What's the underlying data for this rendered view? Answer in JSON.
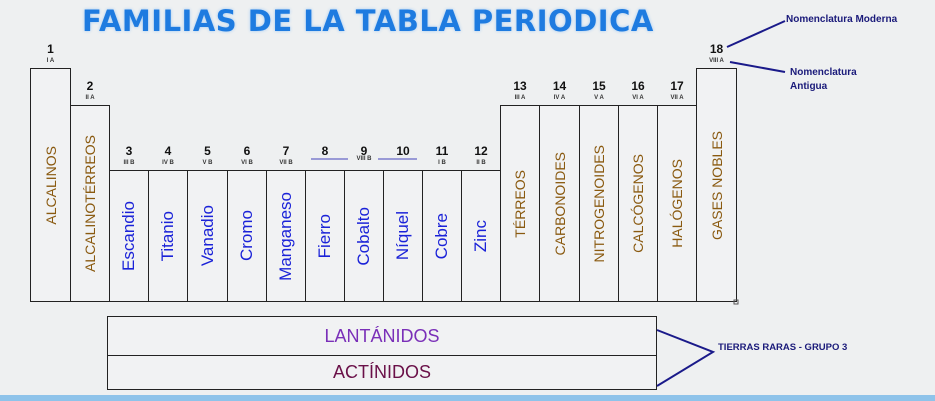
{
  "title": "FAMILIAS DE LA TABLA PERIODICA",
  "groups": [
    {
      "number": "1",
      "old": "I A",
      "family": "ALCALINOS",
      "color": "#8a5a10"
    },
    {
      "number": "2",
      "old": "II A",
      "family": "ALCALINOTÉRREOS",
      "color": "#8a5a10"
    },
    {
      "number": "3",
      "old": "III B",
      "family": "Escandio",
      "color": "#1a22d8"
    },
    {
      "number": "4",
      "old": "IV B",
      "family": "Titanio",
      "color": "#1a22d8"
    },
    {
      "number": "5",
      "old": "V B",
      "family": "Vanadio",
      "color": "#1a22d8"
    },
    {
      "number": "6",
      "old": "VI B",
      "family": "Cromo",
      "color": "#1a22d8"
    },
    {
      "number": "7",
      "old": "VII B",
      "family": "Manganeso",
      "color": "#1a22d8"
    },
    {
      "number": "8",
      "old": "",
      "family": "Fierro",
      "color": "#1a22d8"
    },
    {
      "number": "9",
      "old": "VIII B",
      "family": "Cobalto",
      "color": "#1a22d8"
    },
    {
      "number": "10",
      "old": "",
      "family": "Níquel",
      "color": "#1a22d8"
    },
    {
      "number": "11",
      "old": "I B",
      "family": "Cobre",
      "color": "#1a22d8"
    },
    {
      "number": "12",
      "old": "II B",
      "family": "Zinc",
      "color": "#1a22d8"
    },
    {
      "number": "13",
      "old": "III A",
      "family": "TÉRREOS",
      "color": "#8a5a10"
    },
    {
      "number": "14",
      "old": "IV A",
      "family": "CARBONOIDES",
      "color": "#8a5a10"
    },
    {
      "number": "15",
      "old": "V A",
      "family": "NITROGENOIDES",
      "color": "#8a5a10"
    },
    {
      "number": "16",
      "old": "VI A",
      "family": "CALCÓGENOS",
      "color": "#8a5a10"
    },
    {
      "number": "17",
      "old": "VII A",
      "family": "HALÓGENOS",
      "color": "#8a5a10"
    },
    {
      "number": "18",
      "old": "VIII A",
      "family": "GASES NOBLES",
      "color": "#8a5a10"
    }
  ],
  "annotations": {
    "modern": "Nomenclatura Moderna",
    "old_line1": "Nomenclatura",
    "old_line2": "Antigua",
    "rare_earths": "TIERRAS RARAS  - GRUPO 3"
  },
  "f_block": {
    "lanthanides": "LANTÁNIDOS",
    "actinides": "ACTÍNIDOS",
    "lanthanides_color": "#7a2fb8",
    "actinides_color": "#6a1048"
  }
}
